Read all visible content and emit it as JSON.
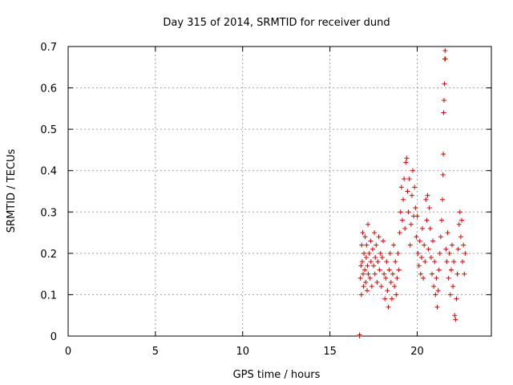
{
  "chart_data": {
    "type": "scatter",
    "title": "Day 315 of 2014, SRMTID for receiver dund",
    "xlabel": "GPS time / hours",
    "ylabel": "SRMTID / TECUs",
    "xlim": [
      0,
      24.25
    ],
    "ylim": [
      0,
      0.7
    ],
    "xticks": [
      0,
      5,
      10,
      15,
      20
    ],
    "yticks": [
      0,
      0.1,
      0.2,
      0.3,
      0.4,
      0.5,
      0.6,
      0.7
    ],
    "xtick_labels": [
      "0",
      "5",
      "10",
      "15",
      "20"
    ],
    "ytick_labels": [
      "0",
      "0.1",
      "0.2",
      "0.3",
      "0.4",
      "0.5",
      "0.6",
      "0.7"
    ],
    "grid": true,
    "marker": "plus",
    "color": "#e00000",
    "series": [
      {
        "name": "dund",
        "points": [
          [
            16.7,
            0.003
          ],
          [
            16.7,
            0.0
          ],
          [
            16.75,
            0.14
          ],
          [
            16.78,
            0.17
          ],
          [
            16.8,
            0.1
          ],
          [
            16.82,
            0.22
          ],
          [
            16.85,
            0.18
          ],
          [
            16.88,
            0.25
          ],
          [
            16.9,
            0.15
          ],
          [
            16.93,
            0.12
          ],
          [
            16.95,
            0.2
          ],
          [
            17.0,
            0.16
          ],
          [
            17.02,
            0.24
          ],
          [
            17.05,
            0.13
          ],
          [
            17.08,
            0.19
          ],
          [
            17.1,
            0.22
          ],
          [
            17.13,
            0.11
          ],
          [
            17.15,
            0.17
          ],
          [
            17.18,
            0.27
          ],
          [
            17.2,
            0.15
          ],
          [
            17.25,
            0.2
          ],
          [
            17.3,
            0.14
          ],
          [
            17.33,
            0.23
          ],
          [
            17.35,
            0.18
          ],
          [
            17.4,
            0.12
          ],
          [
            17.45,
            0.21
          ],
          [
            17.5,
            0.17
          ],
          [
            17.55,
            0.25
          ],
          [
            17.58,
            0.15
          ],
          [
            17.6,
            0.19
          ],
          [
            17.65,
            0.22
          ],
          [
            17.7,
            0.13
          ],
          [
            17.75,
            0.18
          ],
          [
            17.8,
            0.24
          ],
          [
            17.85,
            0.16
          ],
          [
            17.9,
            0.2
          ],
          [
            17.95,
            0.12
          ],
          [
            18.0,
            0.19
          ],
          [
            18.05,
            0.23
          ],
          [
            18.1,
            0.15
          ],
          [
            18.15,
            0.09
          ],
          [
            18.2,
            0.14
          ],
          [
            18.25,
            0.18
          ],
          [
            18.3,
            0.11
          ],
          [
            18.35,
            0.07
          ],
          [
            18.4,
            0.16
          ],
          [
            18.45,
            0.2
          ],
          [
            18.5,
            0.13
          ],
          [
            18.55,
            0.09
          ],
          [
            18.6,
            0.15
          ],
          [
            18.65,
            0.22
          ],
          [
            18.7,
            0.12
          ],
          [
            18.75,
            0.18
          ],
          [
            18.8,
            0.1
          ],
          [
            18.85,
            0.14
          ],
          [
            18.9,
            0.2
          ],
          [
            18.95,
            0.16
          ],
          [
            19.0,
            0.25
          ],
          [
            19.05,
            0.3
          ],
          [
            19.1,
            0.36
          ],
          [
            19.15,
            0.28
          ],
          [
            19.2,
            0.33
          ],
          [
            19.25,
            0.38
          ],
          [
            19.3,
            0.26
          ],
          [
            19.35,
            0.42
          ],
          [
            19.4,
            0.43
          ],
          [
            19.45,
            0.35
          ],
          [
            19.5,
            0.3
          ],
          [
            19.55,
            0.38
          ],
          [
            19.6,
            0.22
          ],
          [
            19.65,
            0.27
          ],
          [
            19.7,
            0.34
          ],
          [
            19.75,
            0.4
          ],
          [
            19.8,
            0.29
          ],
          [
            19.85,
            0.36
          ],
          [
            19.9,
            0.31
          ],
          [
            19.95,
            0.24
          ],
          [
            20.0,
            0.29
          ],
          [
            20.05,
            0.2
          ],
          [
            20.1,
            0.17
          ],
          [
            20.15,
            0.23
          ],
          [
            20.2,
            0.15
          ],
          [
            20.25,
            0.19
          ],
          [
            20.3,
            0.26
          ],
          [
            20.35,
            0.14
          ],
          [
            20.4,
            0.22
          ],
          [
            20.45,
            0.18
          ],
          [
            20.5,
            0.33
          ],
          [
            20.55,
            0.28
          ],
          [
            20.6,
            0.34
          ],
          [
            20.65,
            0.21
          ],
          [
            20.7,
            0.31
          ],
          [
            20.75,
            0.26
          ],
          [
            20.8,
            0.19
          ],
          [
            20.85,
            0.15
          ],
          [
            20.9,
            0.23
          ],
          [
            20.95,
            0.12
          ],
          [
            21.0,
            0.18
          ],
          [
            21.05,
            0.1
          ],
          [
            21.1,
            0.14
          ],
          [
            21.15,
            0.07
          ],
          [
            21.2,
            0.11
          ],
          [
            21.25,
            0.16
          ],
          [
            21.3,
            0.2
          ],
          [
            21.35,
            0.24
          ],
          [
            21.4,
            0.28
          ],
          [
            21.45,
            0.33
          ],
          [
            21.48,
            0.39
          ],
          [
            21.5,
            0.44
          ],
          [
            21.52,
            0.54
          ],
          [
            21.54,
            0.57
          ],
          [
            21.56,
            0.61
          ],
          [
            21.58,
            0.67
          ],
          [
            21.6,
            0.69
          ],
          [
            21.62,
            0.67
          ],
          [
            21.65,
            0.21
          ],
          [
            21.7,
            0.18
          ],
          [
            21.75,
            0.25
          ],
          [
            21.8,
            0.14
          ],
          [
            21.85,
            0.2
          ],
          [
            21.9,
            0.1
          ],
          [
            21.95,
            0.16
          ],
          [
            22.0,
            0.22
          ],
          [
            22.05,
            0.12
          ],
          [
            22.1,
            0.18
          ],
          [
            22.15,
            0.05
          ],
          [
            22.2,
            0.04
          ],
          [
            22.25,
            0.09
          ],
          [
            22.3,
            0.15
          ],
          [
            22.35,
            0.21
          ],
          [
            22.4,
            0.27
          ],
          [
            22.45,
            0.3
          ],
          [
            22.5,
            0.24
          ],
          [
            22.55,
            0.28
          ],
          [
            22.6,
            0.18
          ],
          [
            22.65,
            0.22
          ],
          [
            22.7,
            0.15
          ],
          [
            22.75,
            0.2
          ]
        ]
      }
    ]
  }
}
